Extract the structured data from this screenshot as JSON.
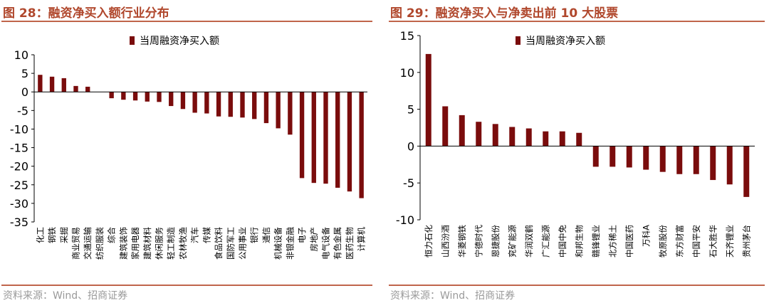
{
  "left": {
    "title": "图 28：融资净买入额行业分布",
    "source": "资料来源：Wind、招商证券"
  },
  "right": {
    "title": "图 29：融资净买入与净卖出前 10 大股票",
    "source": "资料来源：Wind、招商证券"
  },
  "chart_data": [
    {
      "type": "bar",
      "title": "",
      "legend": "当周融资净买入额",
      "bar_color": "#7a0c0c",
      "ylim": [
        -35,
        10
      ],
      "yticks": [
        10,
        5,
        0,
        -5,
        -10,
        -15,
        -20,
        -25,
        -30,
        -35
      ],
      "categories": [
        "化工",
        "钢铁",
        "采掘",
        "商业贸易",
        "交通运输",
        "纺织服装",
        "综合",
        "建筑装饰",
        "家用电器",
        "建筑材料",
        "休闲服务",
        "轻工制造",
        "农林牧渔",
        "汽车",
        "传媒",
        "食品饮料",
        "国防军工",
        "公用事业",
        "银行",
        "通信",
        "机械设备",
        "非银金融",
        "电子",
        "房地产",
        "电气设备",
        "有色金属",
        "医药生物",
        "计算机"
      ],
      "values": [
        4.6,
        4.1,
        3.7,
        1.6,
        1.4,
        0.0,
        -1.7,
        -2.1,
        -2.3,
        -2.6,
        -2.7,
        -3.8,
        -4.6,
        -5.6,
        -5.8,
        -6.6,
        -6.7,
        -6.9,
        -7.3,
        -8.4,
        -9.8,
        -11.5,
        -23.2,
        -24.5,
        -24.7,
        -25.8,
        -26.8,
        -28.6
      ]
    },
    {
      "type": "bar",
      "title": "",
      "legend": "当周融资净买入额",
      "bar_color": "#7a0c0c",
      "ylim": [
        -10,
        15
      ],
      "yticks": [
        15,
        10,
        5,
        0,
        -5,
        -10
      ],
      "categories": [
        "恒力石化",
        "山西汾酒",
        "华菱钢铁",
        "宁德时代",
        "恩捷股份",
        "兖矿能源",
        "华润双鹤",
        "广汇能源",
        "中国中免",
        "和邦生物",
        "赣锋锂业",
        "北方稀土",
        "中国医药",
        "万科A",
        "牧原股份",
        "东方财富",
        "中国平安",
        "石大胜华",
        "天齐锂业",
        "贵州茅台"
      ],
      "values": [
        12.5,
        5.4,
        4.2,
        3.3,
        3.0,
        2.6,
        2.4,
        2.0,
        2.0,
        1.8,
        -2.8,
        -2.8,
        -2.9,
        -3.2,
        -3.5,
        -3.8,
        -3.8,
        -4.6,
        -5.2,
        -6.9
      ]
    }
  ]
}
